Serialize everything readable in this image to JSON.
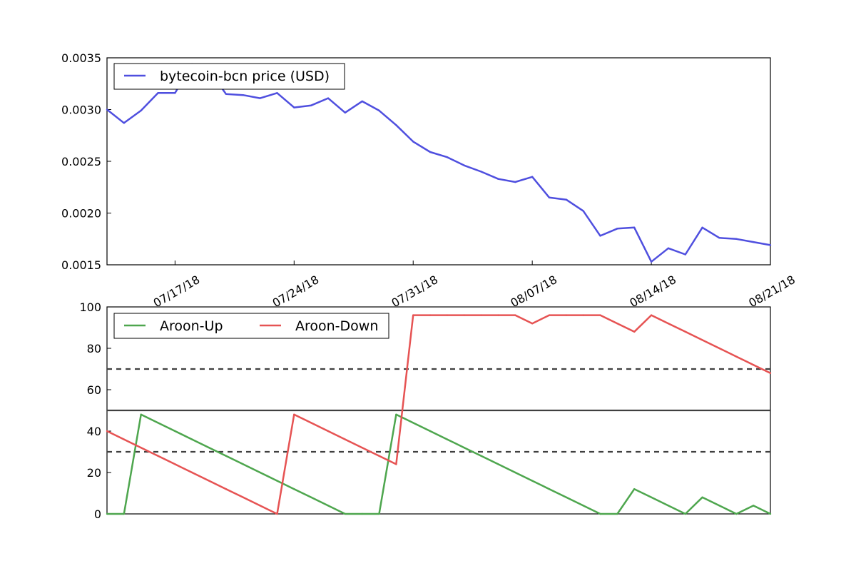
{
  "colors": {
    "price": "#4f4fdf",
    "aroon_up": "#4ea64e",
    "aroon_down": "#e65353",
    "ref_line": "#404040"
  },
  "chart_data": [
    {
      "type": "line",
      "title": "",
      "xlabel": "",
      "ylabel": "",
      "ylim": [
        0.0015,
        0.0035
      ],
      "xlim": [
        "07/13/18",
        "08/21/18"
      ],
      "y_ticks": [
        "0.0015",
        "0.0020",
        "0.0025",
        "0.0030",
        "0.0035"
      ],
      "x_ticks": [
        "07/17/18",
        "07/24/18",
        "07/31/18",
        "08/07/18",
        "08/14/18",
        "08/21/18"
      ],
      "legend": {
        "position": "upper-left",
        "entries": [
          "bytecoin-bcn price (USD)"
        ]
      },
      "grid": false,
      "series": [
        {
          "name": "bytecoin-bcn price (USD)",
          "dates": [
            "07/13/18",
            "07/14/18",
            "07/15/18",
            "07/16/18",
            "07/17/18",
            "07/18/18",
            "07/19/18",
            "07/20/18",
            "07/21/18",
            "07/22/18",
            "07/23/18",
            "07/24/18",
            "07/25/18",
            "07/26/18",
            "07/27/18",
            "07/28/18",
            "07/29/18",
            "07/30/18",
            "07/31/18",
            "08/01/18",
            "08/02/18",
            "08/03/18",
            "08/04/18",
            "08/05/18",
            "08/06/18",
            "08/07/18",
            "08/08/18",
            "08/09/18",
            "08/10/18",
            "08/11/18",
            "08/12/18",
            "08/13/18",
            "08/14/18",
            "08/15/18",
            "08/16/18",
            "08/17/18",
            "08/18/18",
            "08/19/18",
            "08/20/18",
            "08/21/18"
          ],
          "values": [
            0.003,
            0.00287,
            0.00299,
            0.00316,
            0.00316,
            0.00344,
            0.00338,
            0.00315,
            0.00314,
            0.00311,
            0.00316,
            0.00302,
            0.00304,
            0.00311,
            0.00297,
            0.00308,
            0.00299,
            0.00285,
            0.00269,
            0.00259,
            0.00254,
            0.00246,
            0.0024,
            0.00233,
            0.0023,
            0.00235,
            0.00215,
            0.00213,
            0.00202,
            0.00178,
            0.00185,
            0.00186,
            0.00153,
            0.00166,
            0.0016,
            0.00186,
            0.00176,
            0.00175,
            0.00172,
            0.00169
          ]
        }
      ]
    },
    {
      "type": "line",
      "title": "",
      "xlabel": "",
      "ylabel": "",
      "ylim": [
        0,
        100
      ],
      "xlim": [
        "07/13/18",
        "08/21/18"
      ],
      "y_ticks": [
        "0",
        "20",
        "40",
        "60",
        "80",
        "100"
      ],
      "legend": {
        "position": "upper-left",
        "entries": [
          "Aroon-Up",
          "Aroon-Down"
        ]
      },
      "grid": false,
      "reference_lines": [
        {
          "y": 70,
          "style": "dashed"
        },
        {
          "y": 50,
          "style": "solid"
        },
        {
          "y": 30,
          "style": "dashed"
        }
      ],
      "series": [
        {
          "name": "Aroon-Up",
          "values": [
            0,
            0,
            48,
            44,
            40,
            36,
            32,
            28,
            24,
            20,
            16,
            12,
            8,
            4,
            0,
            0,
            0,
            48,
            44,
            40,
            36,
            32,
            28,
            24,
            20,
            16,
            12,
            8,
            4,
            0,
            0,
            12,
            8,
            4,
            0,
            8,
            4,
            0,
            4,
            0
          ]
        },
        {
          "name": "Aroon-Down",
          "values": [
            40,
            36,
            32,
            28,
            24,
            20,
            16,
            12,
            8,
            4,
            0,
            48,
            44,
            40,
            36,
            32,
            28,
            24,
            96,
            96,
            96,
            96,
            96,
            96,
            96,
            92,
            96,
            96,
            96,
            96,
            92,
            88,
            96,
            92,
            88,
            84,
            80,
            76,
            72,
            68
          ]
        }
      ]
    }
  ]
}
